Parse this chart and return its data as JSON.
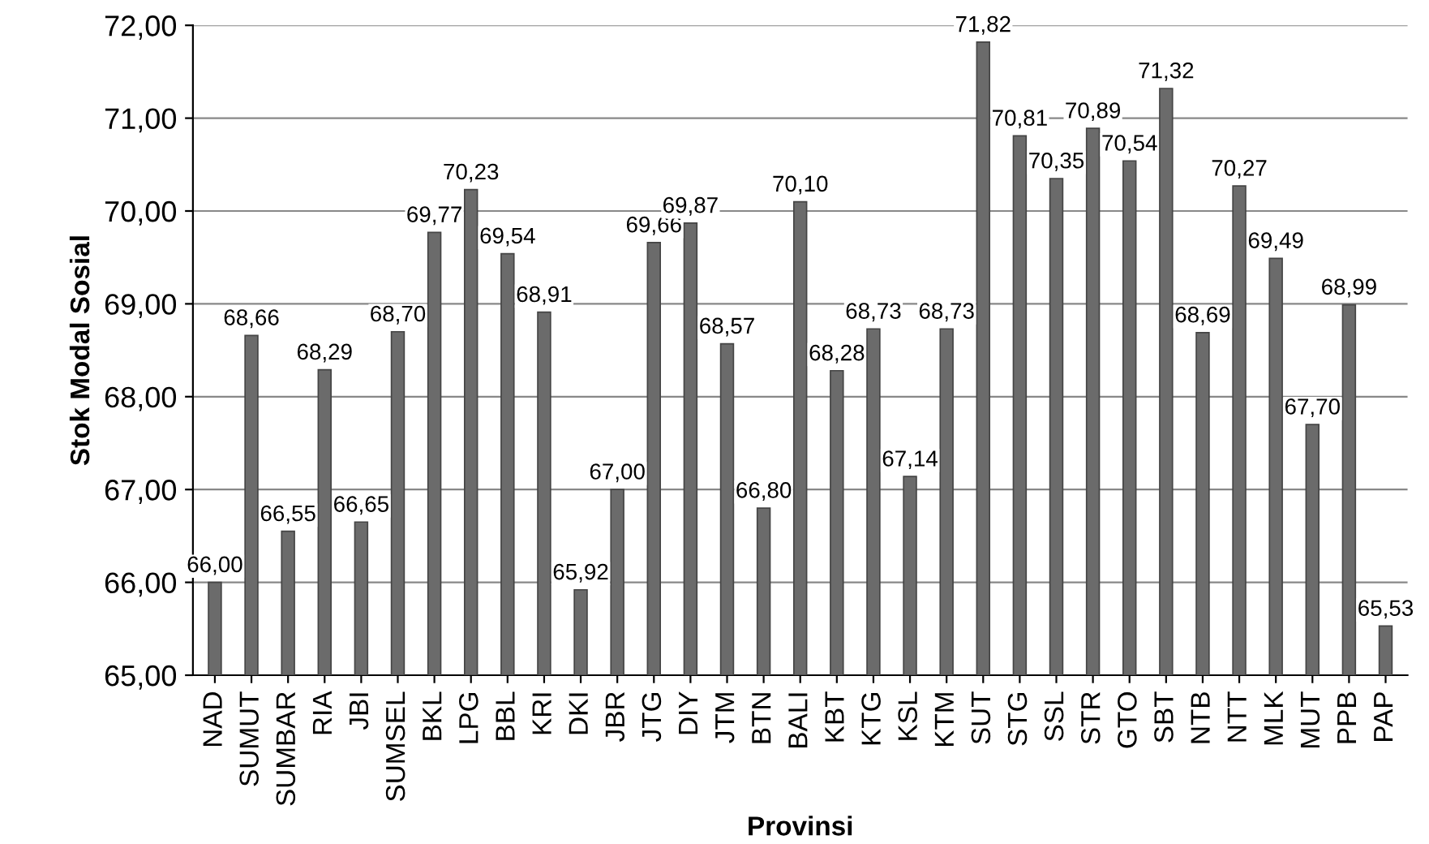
{
  "chart_data": {
    "type": "bar",
    "xlabel": "Provinsi",
    "ylabel": "Stok Modal Sosial",
    "categories": [
      "NAD",
      "SUMUT",
      "SUMBAR",
      "RIA",
      "JBI",
      "SUMSEL",
      "BKL",
      "LPG",
      "BBL",
      "KRI",
      "DKI",
      "JBR",
      "JTG",
      "DIY",
      "JTM",
      "BTN",
      "BALI",
      "KBT",
      "KTG",
      "KSL",
      "KTM",
      "SUT",
      "STG",
      "SSL",
      "STR",
      "GTO",
      "SBT",
      "NTB",
      "NTT",
      "MLK",
      "MUT",
      "PPB",
      "PAP"
    ],
    "values": [
      66.0,
      68.66,
      66.55,
      68.29,
      66.65,
      68.7,
      69.77,
      70.23,
      69.54,
      68.91,
      65.92,
      67.0,
      69.66,
      69.87,
      68.57,
      66.8,
      70.1,
      68.28,
      68.73,
      67.14,
      68.73,
      71.82,
      70.81,
      70.35,
      70.89,
      70.54,
      71.32,
      68.69,
      70.27,
      69.49,
      67.7,
      68.99,
      65.53
    ],
    "value_labels": [
      "66,00",
      "68,66",
      "66,55",
      "68,29",
      "66,65",
      "68,70",
      "69,77",
      "70,23",
      "69,54",
      "68,91",
      "65,92",
      "67,00",
      "69,66",
      "69,87",
      "68,57",
      "66,80",
      "70,10",
      "68,28",
      "68,73",
      "67,14",
      "68,73",
      "71,82",
      "70,81",
      "70,35",
      "70,89",
      "70,54",
      "71,32",
      "68,69",
      "70,27",
      "69,49",
      "67,70",
      "68,99",
      "65,53"
    ],
    "color": "#6b6b6b",
    "ylim": [
      65,
      72
    ],
    "yticks": [
      {
        "value": 65,
        "label": "65,00"
      },
      {
        "value": 66,
        "label": "66,00"
      },
      {
        "value": 67,
        "label": "67,00"
      },
      {
        "value": 68,
        "label": "68,00"
      },
      {
        "value": 69,
        "label": "69,00"
      },
      {
        "value": 70,
        "label": "70,00"
      },
      {
        "value": 71,
        "label": "71,00"
      },
      {
        "value": 72,
        "label": "72,00"
      }
    ],
    "grid": "y"
  }
}
